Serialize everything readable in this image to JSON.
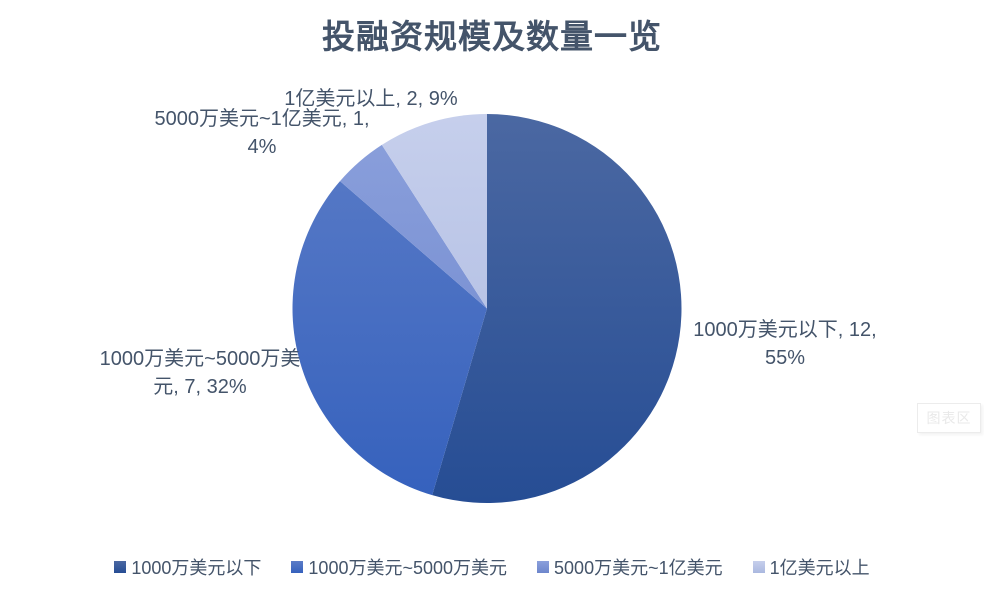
{
  "title": "投融资规模及数量一览",
  "chart_data": {
    "type": "pie",
    "title": "投融资规模及数量一览",
    "categories": [
      "1000万美元以下",
      "1000万美元~5000万美元",
      "5000万美元~1亿美元",
      "1亿美元以上"
    ],
    "values": [
      12,
      7,
      1,
      2
    ],
    "percent_labels": [
      "55%",
      "32%",
      "4%",
      "9%"
    ],
    "start_angle_deg": 0,
    "direction": "clockwise",
    "legend_position": "bottom",
    "colors_top": [
      "#4b68a2",
      "#5b7cc7",
      "#8ba0dc",
      "#c6cfec"
    ],
    "colors_bottom": [
      "#264d94",
      "#3561bd",
      "#6d86cc",
      "#aab8e0"
    ]
  },
  "data_labels": {
    "slice1": {
      "line1": "1000万美元以下, 12,",
      "line2": "55%"
    },
    "slice2": {
      "line1": "1000万美元~5000万美",
      "line2": "元, 7, 32%"
    },
    "slice3": {
      "line1": "5000万美元~1亿美元, 1,",
      "line2": "4%"
    },
    "slice4": {
      "line1": "1亿美元以上, 2, 9%"
    }
  },
  "legend": {
    "items": [
      {
        "label": "1000万美元以下"
      },
      {
        "label": "1000万美元~5000万美元"
      },
      {
        "label": "5000万美元~1亿美元"
      },
      {
        "label": "1亿美元以上"
      }
    ]
  },
  "tooltip": {
    "text": "图表区"
  }
}
